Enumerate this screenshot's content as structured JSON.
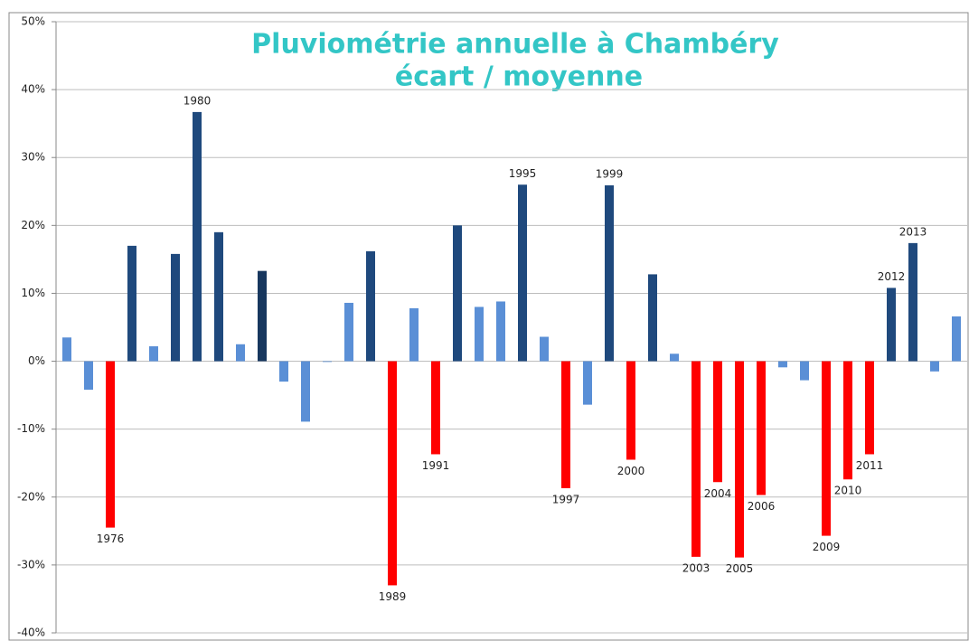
{
  "chart_data": {
    "type": "bar",
    "title": [
      "Pluviométrie annuelle à Chambéry",
      "écart / moyenne"
    ],
    "categories": [
      null,
      null,
      "1976",
      null,
      null,
      null,
      "1980",
      null,
      null,
      null,
      null,
      null,
      null,
      null,
      null,
      "1989",
      null,
      "1991",
      null,
      null,
      null,
      "1995",
      null,
      "1997",
      null,
      "1999",
      "2000",
      null,
      null,
      "2003",
      "2004",
      "2005",
      "2006",
      null,
      null,
      "2009",
      "2010",
      "2011",
      "2012",
      "2013",
      null,
      null
    ],
    "values": [
      3.5,
      -4.2,
      -24.5,
      17,
      2.2,
      15.8,
      36.7,
      19,
      2.5,
      13.3,
      -3,
      -8.9,
      -0.1,
      8.6,
      16.2,
      -33,
      7.8,
      -13.7,
      20,
      8,
      8.8,
      26,
      3.6,
      -18.7,
      -6.4,
      25.9,
      -14.5,
      12.8,
      1.1,
      -28.8,
      -17.8,
      -28.9,
      -19.7,
      -0.9,
      -2.8,
      -25.7,
      -17.4,
      -13.7,
      10.8,
      17.4,
      -1.5,
      6.6
    ],
    "colors": [
      "#5a8fd6",
      "#5a8fd6",
      "#ff0000",
      "#1f497d",
      "#5a8fd6",
      "#1f497d",
      "#1f497d",
      "#1f497d",
      "#5a8fd6",
      "#17375e",
      "#5a8fd6",
      "#5a8fd6",
      "#5a8fd6",
      "#5a8fd6",
      "#1f497d",
      "#ff0000",
      "#5a8fd6",
      "#ff0000",
      "#1f497d",
      "#5a8fd6",
      "#5a8fd6",
      "#1f497d",
      "#5a8fd6",
      "#ff0000",
      "#5a8fd6",
      "#1f497d",
      "#ff0000",
      "#1f497d",
      "#5a8fd6",
      "#ff0000",
      "#ff0000",
      "#ff0000",
      "#ff0000",
      "#5a8fd6",
      "#5a8fd6",
      "#ff0000",
      "#ff0000",
      "#ff0000",
      "#1f497d",
      "#1f497d",
      "#5a8fd6",
      "#5a8fd6"
    ],
    "ylim": [
      -40,
      50
    ],
    "yticks": [
      {
        "value": -40,
        "label": "-40%"
      },
      {
        "value": -30,
        "label": "-30%"
      },
      {
        "value": -20,
        "label": "-20%"
      },
      {
        "value": -10,
        "label": "-10%"
      },
      {
        "value": 0,
        "label": "0%"
      },
      {
        "value": 10,
        "label": "10%"
      },
      {
        "value": 20,
        "label": "20%"
      },
      {
        "value": 30,
        "label": "30%"
      },
      {
        "value": 40,
        "label": "40%"
      },
      {
        "value": 50,
        "label": "50%"
      }
    ],
    "grid": true
  }
}
